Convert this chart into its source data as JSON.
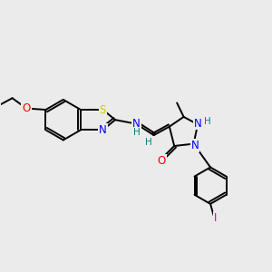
{
  "bg_color": "#ebebeb",
  "bond_color": "#000000",
  "bond_width": 1.4,
  "atom_colors": {
    "S": "#cccc00",
    "N": "#0000ff",
    "O": "#ff0000",
    "I": "#cc00cc",
    "H": "#008080",
    "C": "#000000"
  },
  "font_size_atom": 8.5
}
